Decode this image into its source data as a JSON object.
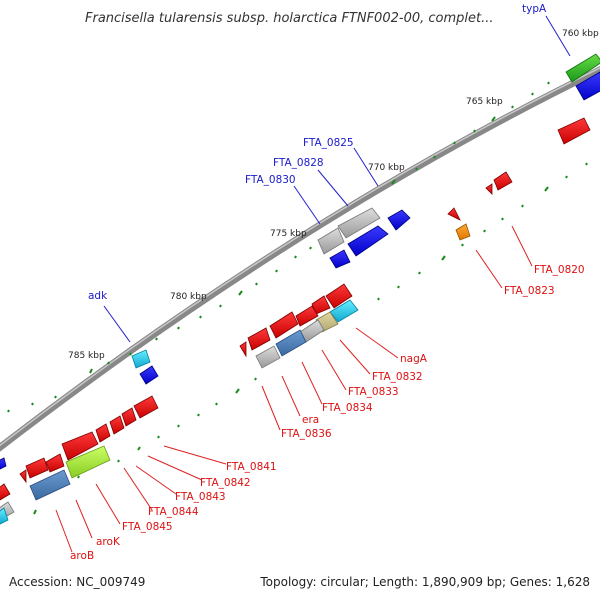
{
  "title": "Francisella tularensis subsp. holarctica FTNF002-00, complet...",
  "footer": {
    "accession": "Accession: NC_009749",
    "summary": "Topology: circular; Length: 1,890,909 bp; Genes: 1,628"
  },
  "colors": {
    "backbone": "#808080",
    "forward_gene": "#0000ee",
    "reverse_gene": "#ee1111",
    "forward_label": "#1a1acc",
    "reverse_label": "#dd1111",
    "tick": "#1a8a1a"
  },
  "scale_labels": [
    "760 kbp",
    "765 kbp",
    "770 kbp",
    "775 kbp",
    "780 kbp",
    "785 kbp"
  ],
  "forward_gene_labels": [
    "typA",
    "FTA_0825",
    "FTA_0828",
    "FTA_0830",
    "adk"
  ],
  "reverse_gene_labels": [
    "FTA_0820",
    "FTA_0823",
    "nagA",
    "FTA_0832",
    "FTA_0833",
    "FTA_0834",
    "era",
    "FTA_0836",
    "FTA_0841",
    "FTA_0842",
    "FTA_0843",
    "FTA_0844",
    "FTA_0845",
    "aroK",
    "aroB"
  ]
}
